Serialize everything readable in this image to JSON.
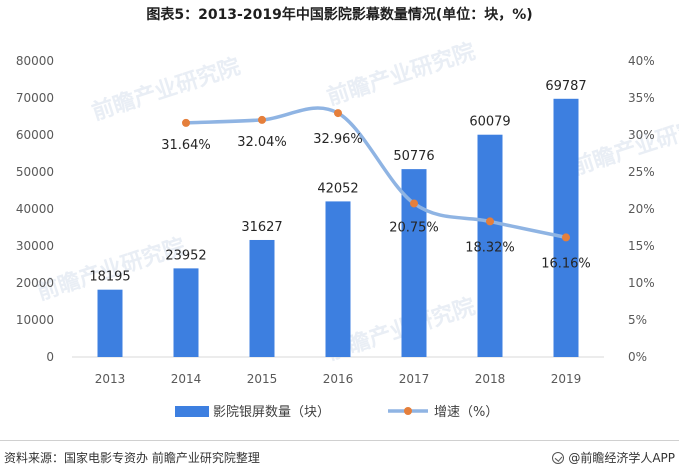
{
  "title": "图表5：2013-2019年中国影院影幕数量情况(单位：块，%)",
  "footer": {
    "source": "资料来源：国家电影专资办 前瞻产业研究院整理",
    "brand": "@前瞻经济学人APP"
  },
  "watermark": "前瞻产业研究院",
  "colors": {
    "bar": "#3d7fe0",
    "line": "#8fb4e3",
    "marker": "#e57f3b"
  },
  "chart_data": {
    "type": "bar",
    "categories": [
      "2013",
      "2014",
      "2015",
      "2016",
      "2017",
      "2018",
      "2019"
    ],
    "series": [
      {
        "name": "影院银屏数量（块）",
        "type": "bar",
        "axis": "left",
        "values": [
          18195,
          23952,
          31627,
          42052,
          50776,
          60079,
          69787
        ],
        "labels": [
          "18195",
          "23952",
          "31627",
          "42052",
          "50776",
          "60079",
          "69787"
        ]
      },
      {
        "name": "增速（%）",
        "type": "line",
        "axis": "right",
        "values": [
          null,
          31.64,
          32.04,
          32.96,
          20.75,
          18.32,
          16.16
        ],
        "labels": [
          "",
          "31.64%",
          "32.04%",
          "32.96%",
          "20.75%",
          "18.32%",
          "16.16%"
        ]
      }
    ],
    "y_left": {
      "min": 0,
      "max": 80000,
      "ticks": [
        "0",
        "10000",
        "20000",
        "30000",
        "40000",
        "50000",
        "60000",
        "70000",
        "80000"
      ]
    },
    "y_right": {
      "min": 0,
      "max": 40,
      "ticks": [
        "0%",
        "5%",
        "10%",
        "15%",
        "20%",
        "25%",
        "30%",
        "35%",
        "40%"
      ]
    },
    "grid": false,
    "legend_position": "bottom"
  }
}
